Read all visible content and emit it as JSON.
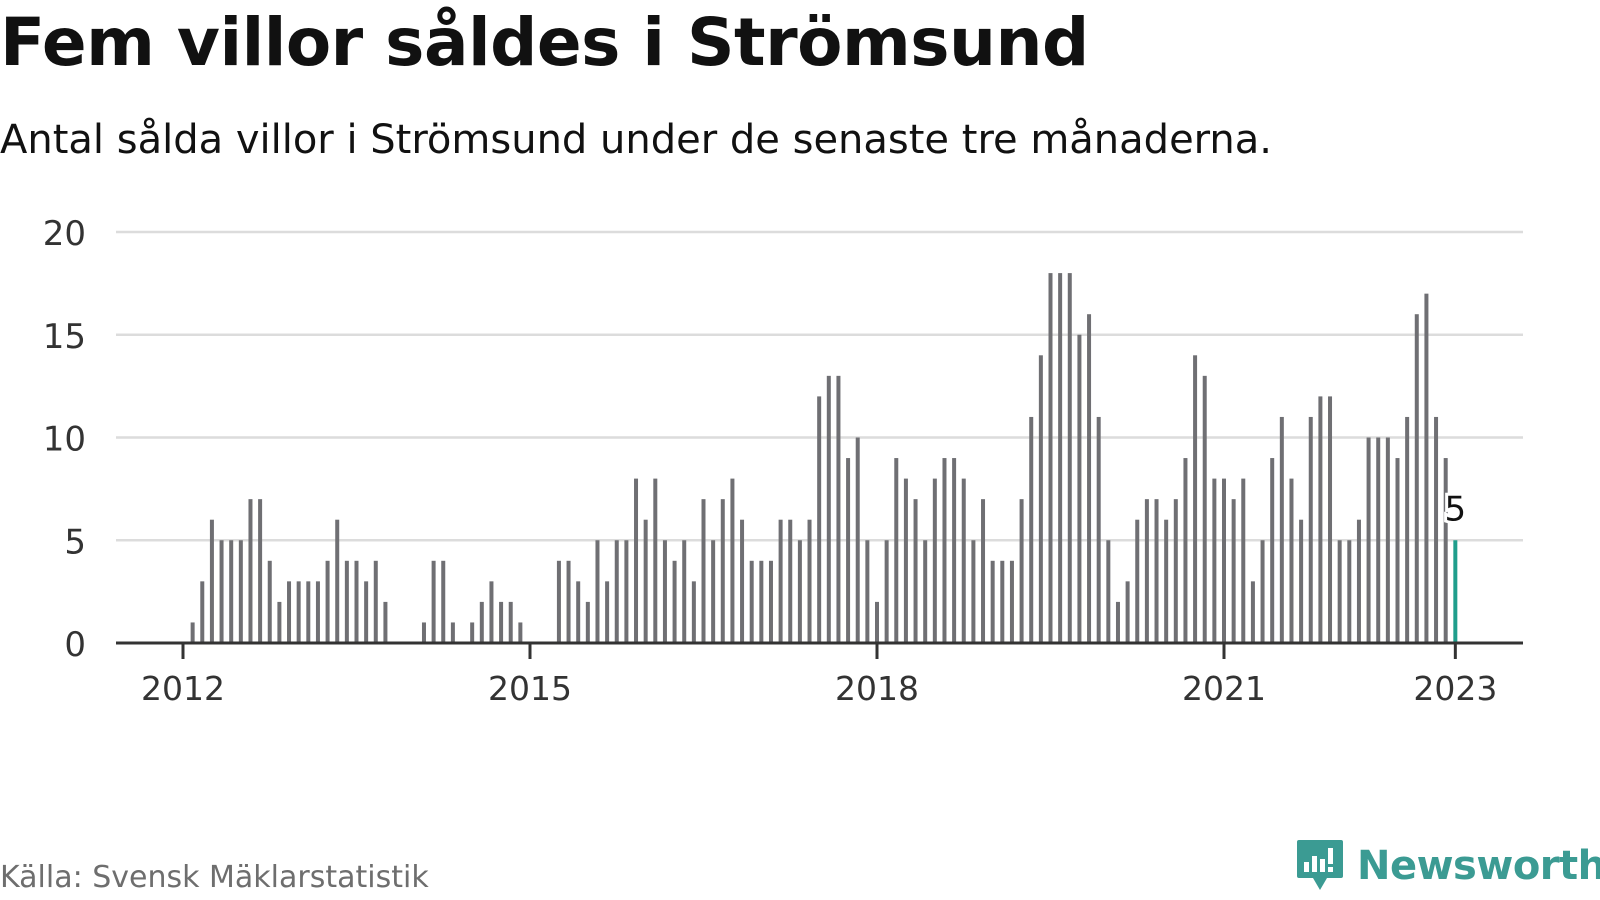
{
  "title": "Fem villor såldes i Strömsund",
  "subtitle": "Antal sålda villor i Strömsund under de senaste tre månaderna.",
  "source": "Källa: Svensk Mäklarstatistik",
  "brand": {
    "name": "Newsworthy",
    "icon": "newsworthy-logo-icon",
    "color": "#3b9b93"
  },
  "colors": {
    "bar": "#6f6f73",
    "highlight": "#1f9e8c",
    "grid": "#dcdcdc",
    "axis": "#333333"
  },
  "chart_data": {
    "type": "bar",
    "title": "Fem villor såldes i Strömsund",
    "subtitle": "Antal sålda villor i Strömsund under de senaste tre månaderna.",
    "xlabel": "",
    "ylabel": "",
    "ylim": [
      0,
      20
    ],
    "yticks": [
      0,
      5,
      10,
      15,
      20
    ],
    "xticks": [
      {
        "label": "2012",
        "date": "2012-01"
      },
      {
        "label": "2015",
        "date": "2015-01"
      },
      {
        "label": "2018",
        "date": "2018-01"
      },
      {
        "label": "2021",
        "date": "2021-01"
      },
      {
        "label": "2023",
        "date": "2023-01"
      }
    ],
    "grid": true,
    "highlight": {
      "date": "2023-01",
      "label": "5"
    },
    "series": [
      {
        "points": [
          [
            "2011-06",
            0
          ],
          [
            "2011-07",
            0
          ],
          [
            "2011-08",
            0
          ],
          [
            "2011-09",
            0
          ],
          [
            "2011-10",
            0
          ],
          [
            "2011-11",
            0
          ],
          [
            "2011-12",
            0
          ],
          [
            "2012-01",
            0
          ],
          [
            "2012-02",
            1
          ],
          [
            "2012-03",
            3
          ],
          [
            "2012-04",
            6
          ],
          [
            "2012-05",
            5
          ],
          [
            "2012-06",
            5
          ],
          [
            "2012-07",
            5
          ],
          [
            "2012-08",
            7
          ],
          [
            "2012-09",
            7
          ],
          [
            "2012-10",
            4
          ],
          [
            "2012-11",
            2
          ],
          [
            "2012-12",
            3
          ],
          [
            "2013-01",
            3
          ],
          [
            "2013-02",
            3
          ],
          [
            "2013-03",
            3
          ],
          [
            "2013-04",
            4
          ],
          [
            "2013-05",
            6
          ],
          [
            "2013-06",
            4
          ],
          [
            "2013-07",
            4
          ],
          [
            "2013-08",
            3
          ],
          [
            "2013-09",
            4
          ],
          [
            "2013-10",
            2
          ],
          [
            "2013-11",
            0
          ],
          [
            "2013-12",
            0
          ],
          [
            "2014-01",
            0
          ],
          [
            "2014-02",
            1
          ],
          [
            "2014-03",
            4
          ],
          [
            "2014-04",
            4
          ],
          [
            "2014-05",
            1
          ],
          [
            "2014-06",
            0
          ],
          [
            "2014-07",
            1
          ],
          [
            "2014-08",
            2
          ],
          [
            "2014-09",
            3
          ],
          [
            "2014-10",
            2
          ],
          [
            "2014-11",
            2
          ],
          [
            "2014-12",
            1
          ],
          [
            "2015-01",
            0
          ],
          [
            "2015-02",
            0
          ],
          [
            "2015-03",
            0
          ],
          [
            "2015-04",
            4
          ],
          [
            "2015-05",
            4
          ],
          [
            "2015-06",
            3
          ],
          [
            "2015-07",
            2
          ],
          [
            "2015-08",
            5
          ],
          [
            "2015-09",
            3
          ],
          [
            "2015-10",
            5
          ],
          [
            "2015-11",
            5
          ],
          [
            "2015-12",
            8
          ],
          [
            "2016-01",
            6
          ],
          [
            "2016-02",
            8
          ],
          [
            "2016-03",
            5
          ],
          [
            "2016-04",
            4
          ],
          [
            "2016-05",
            5
          ],
          [
            "2016-06",
            3
          ],
          [
            "2016-07",
            7
          ],
          [
            "2016-08",
            5
          ],
          [
            "2016-09",
            7
          ],
          [
            "2016-10",
            8
          ],
          [
            "2016-11",
            6
          ],
          [
            "2016-12",
            4
          ],
          [
            "2017-01",
            4
          ],
          [
            "2017-02",
            4
          ],
          [
            "2017-03",
            6
          ],
          [
            "2017-04",
            6
          ],
          [
            "2017-05",
            5
          ],
          [
            "2017-06",
            6
          ],
          [
            "2017-07",
            12
          ],
          [
            "2017-08",
            13
          ],
          [
            "2017-09",
            13
          ],
          [
            "2017-10",
            9
          ],
          [
            "2017-11",
            10
          ],
          [
            "2017-12",
            5
          ],
          [
            "2018-01",
            2
          ],
          [
            "2018-02",
            5
          ],
          [
            "2018-03",
            9
          ],
          [
            "2018-04",
            8
          ],
          [
            "2018-05",
            7
          ],
          [
            "2018-06",
            5
          ],
          [
            "2018-07",
            8
          ],
          [
            "2018-08",
            9
          ],
          [
            "2018-09",
            9
          ],
          [
            "2018-10",
            8
          ],
          [
            "2018-11",
            5
          ],
          [
            "2018-12",
            7
          ],
          [
            "2019-01",
            4
          ],
          [
            "2019-02",
            4
          ],
          [
            "2019-03",
            4
          ],
          [
            "2019-04",
            7
          ],
          [
            "2019-05",
            11
          ],
          [
            "2019-06",
            14
          ],
          [
            "2019-07",
            18
          ],
          [
            "2019-08",
            18
          ],
          [
            "2019-09",
            18
          ],
          [
            "2019-10",
            15
          ],
          [
            "2019-11",
            16
          ],
          [
            "2019-12",
            11
          ],
          [
            "2020-01",
            5
          ],
          [
            "2020-02",
            2
          ],
          [
            "2020-03",
            3
          ],
          [
            "2020-04",
            6
          ],
          [
            "2020-05",
            7
          ],
          [
            "2020-06",
            7
          ],
          [
            "2020-07",
            6
          ],
          [
            "2020-08",
            7
          ],
          [
            "2020-09",
            9
          ],
          [
            "2020-10",
            14
          ],
          [
            "2020-11",
            13
          ],
          [
            "2020-12",
            8
          ],
          [
            "2021-01",
            8
          ],
          [
            "2021-02",
            7
          ],
          [
            "2021-03",
            8
          ],
          [
            "2021-04",
            3
          ],
          [
            "2021-05",
            5
          ],
          [
            "2021-06",
            9
          ],
          [
            "2021-07",
            11
          ],
          [
            "2021-08",
            8
          ],
          [
            "2021-09",
            6
          ],
          [
            "2021-10",
            11
          ],
          [
            "2021-11",
            12
          ],
          [
            "2021-12",
            12
          ],
          [
            "2022-01",
            5
          ],
          [
            "2022-02",
            5
          ],
          [
            "2022-03",
            6
          ],
          [
            "2022-04",
            10
          ],
          [
            "2022-05",
            10
          ],
          [
            "2022-06",
            10
          ],
          [
            "2022-07",
            9
          ],
          [
            "2022-08",
            11
          ],
          [
            "2022-09",
            16
          ],
          [
            "2022-10",
            17
          ],
          [
            "2022-11",
            11
          ],
          [
            "2022-12",
            9
          ],
          [
            "2023-01",
            5
          ]
        ]
      }
    ]
  }
}
